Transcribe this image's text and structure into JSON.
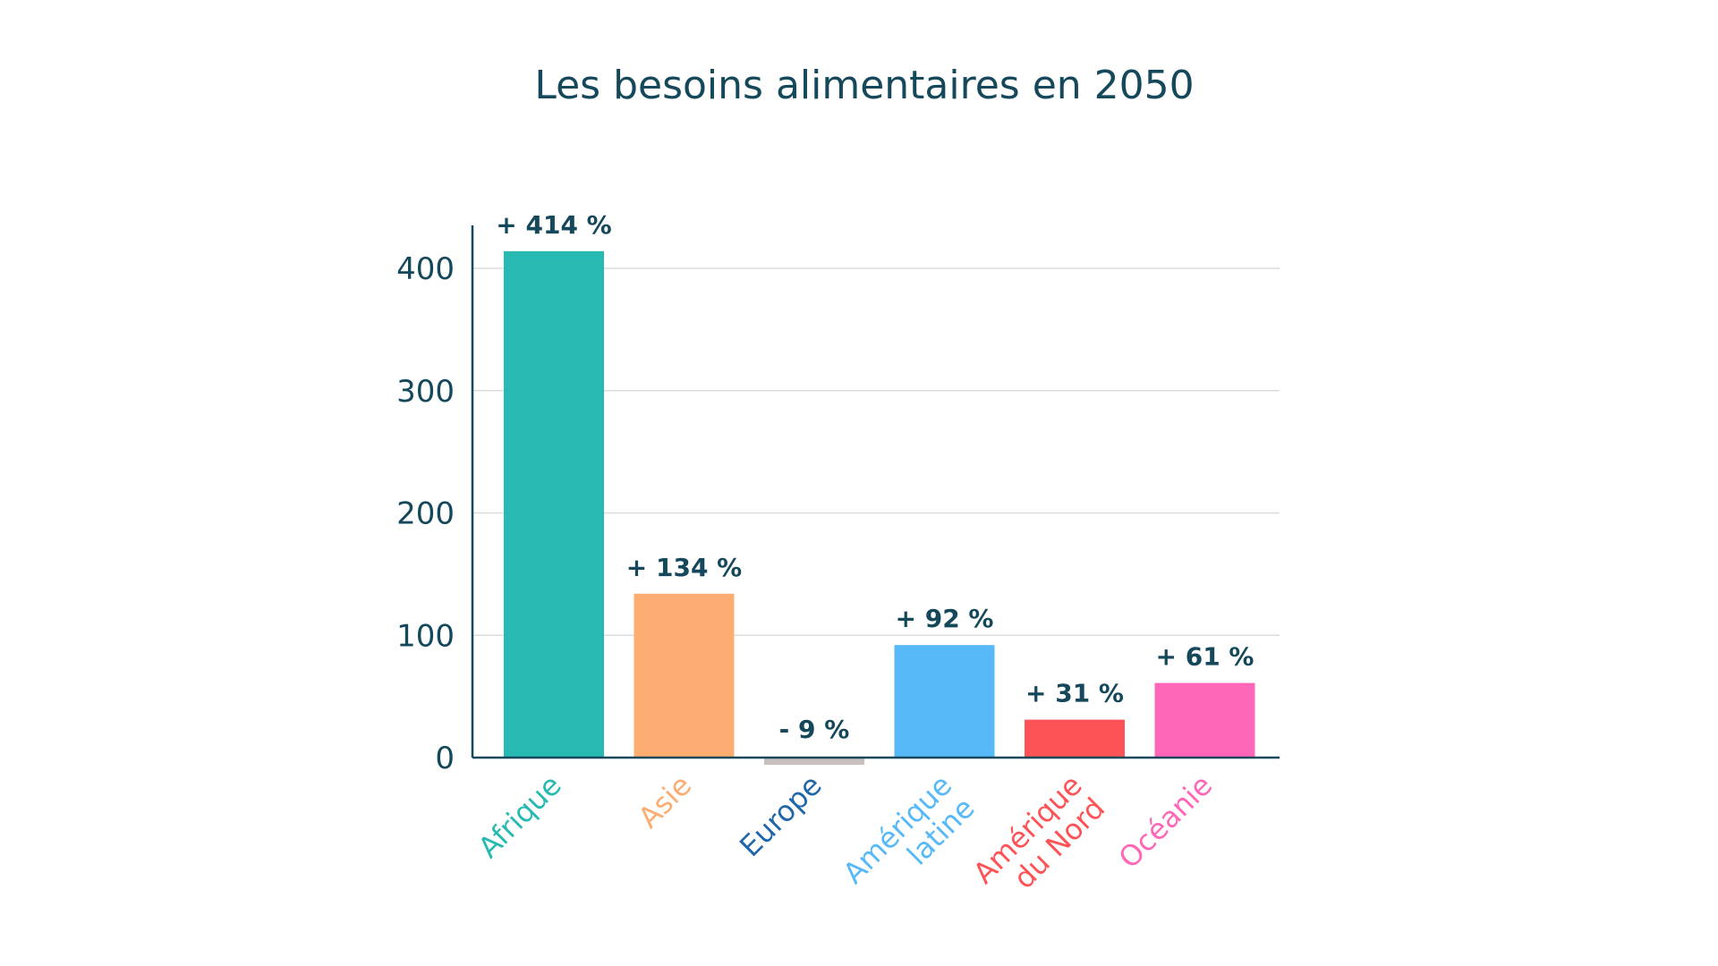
{
  "chart_data": {
    "type": "bar",
    "title": "Les besoins alimentaires en 2050",
    "categories": [
      "Afrique",
      "Asie",
      "Europe",
      "Amérique latine",
      "Amérique du Nord",
      "Océanie"
    ],
    "category_label_lines": [
      [
        "Afrique"
      ],
      [
        "Asie"
      ],
      [
        "Europe"
      ],
      [
        "Amérique",
        "latine"
      ],
      [
        "Amérique",
        "du Nord"
      ],
      [
        "Océanie"
      ]
    ],
    "values": [
      414,
      134,
      -9,
      92,
      31,
      61
    ],
    "data_labels": [
      "+ 414 %",
      "+ 134 %",
      "- 9 %",
      "+ 92 %",
      "+ 31 %",
      "+ 61 %"
    ],
    "bar_colors": [
      "#27bab3",
      "#fdad72",
      "#c9bfbf",
      "#57b9f8",
      "#fd5356",
      "#fe67b8"
    ],
    "label_colors": [
      "#27bab3",
      "#fdad72",
      "#1f67aa",
      "#57b9f8",
      "#fd5356",
      "#fe67b8"
    ],
    "yticks": [
      0,
      100,
      200,
      300,
      400
    ],
    "ylim": [
      -9,
      430
    ],
    "grid": true,
    "xlabel": "",
    "ylabel": ""
  },
  "colors": {
    "text_dark": "#14485a",
    "axis": "#14485a",
    "grid": "#dcdcdc"
  }
}
